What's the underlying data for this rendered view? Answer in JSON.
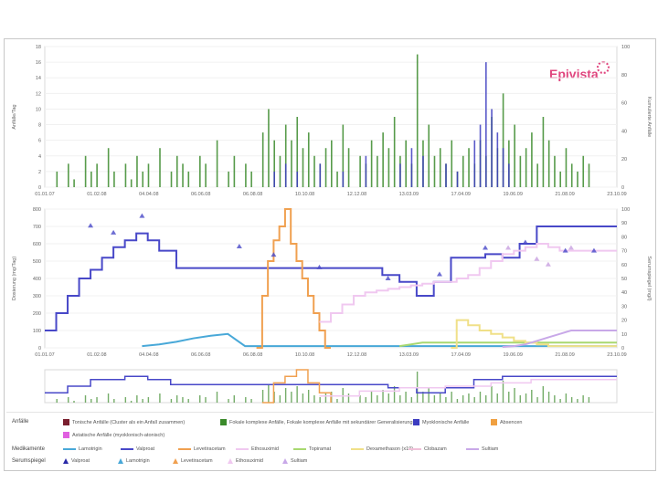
{
  "logo": {
    "text": "Epivista"
  },
  "colors": {
    "anfall_tonic": "#7a1f2e",
    "anfall_focal": "#3a8a2a",
    "anfall_myoclonic": "#3c3cc0",
    "absences": "#f0a040",
    "ahoyp": "#e060e0",
    "lamotrigin": "#48a8d8",
    "valproat": "#4848c8",
    "levetiracetam": "#f0a050",
    "ethosuximid": "#f0c8f0",
    "topiramat": "#a8d870",
    "dexamethason": "#f0e088",
    "clobazam": "#f0c0d8",
    "sultiam": "#c8a8e8"
  },
  "chart_data": [
    {
      "type": "bar",
      "id": "seizure-counts",
      "ylabel_left": "Anfälle/Tag",
      "ylabel_right": "Kumulierte Anfälle",
      "ylim_left": [
        0,
        18
      ],
      "ylim_right": [
        0,
        100
      ],
      "yticks_left": [
        "18",
        "16",
        "14",
        "12",
        "10",
        "8",
        "6",
        "4",
        "2",
        "0"
      ],
      "yticks_right": [
        "100",
        "80",
        "60",
        "40",
        "20",
        "0"
      ],
      "xticks": [
        "01.01.07",
        "01.02.08",
        "04.04.08",
        "06.06.08",
        "06.08.08",
        "10.10.08",
        "12.12.08",
        "13.03.09",
        "17.04.09",
        "19.06.09",
        "21.08.09",
        "23.10.09"
      ],
      "xrange": [
        0,
        100
      ],
      "series": [
        {
          "name": "focal",
          "color": "#3a8a2a",
          "x": [
            2,
            4,
            5,
            7,
            8,
            9,
            11,
            12,
            14,
            15,
            16,
            17,
            18,
            20,
            22,
            23,
            24,
            25,
            27,
            28,
            30,
            32,
            33,
            35,
            36,
            38,
            39,
            40,
            41,
            42,
            43,
            44,
            45,
            46,
            47,
            48,
            49,
            50,
            51,
            52,
            53,
            55,
            56,
            57,
            58,
            59,
            60,
            61,
            62,
            63,
            64,
            65,
            66,
            67,
            68,
            69,
            70,
            71,
            72,
            73,
            74,
            75,
            76,
            77,
            78,
            79,
            80,
            81,
            82,
            83,
            84,
            85,
            86,
            87,
            88,
            89,
            90,
            91,
            92,
            93,
            94,
            95
          ],
          "values": [
            2,
            3,
            1,
            4,
            2,
            3,
            5,
            2,
            3,
            1,
            4,
            2,
            3,
            5,
            2,
            4,
            3,
            2,
            4,
            3,
            6,
            2,
            4,
            3,
            2,
            7,
            10,
            6,
            4,
            8,
            6,
            9,
            5,
            7,
            4,
            3,
            5,
            6,
            2,
            8,
            5,
            4,
            3,
            6,
            4,
            7,
            5,
            9,
            4,
            6,
            3,
            17,
            6,
            8,
            4,
            5,
            3,
            6,
            2,
            4,
            5,
            3,
            6,
            4,
            9,
            5,
            12,
            6,
            8,
            4,
            5,
            7,
            3,
            9,
            6,
            4,
            2,
            5,
            3,
            2,
            4,
            3
          ]
        },
        {
          "name": "myoclonic",
          "color": "#3c3cc0",
          "x": [
            40,
            42,
            44,
            48,
            52,
            56,
            62,
            64,
            66,
            70,
            72,
            75,
            76,
            77,
            78,
            79,
            80,
            81
          ],
          "values": [
            2,
            3,
            2,
            3,
            2,
            4,
            3,
            5,
            4,
            3,
            2,
            6,
            8,
            16,
            10,
            7,
            5,
            3
          ]
        }
      ]
    },
    {
      "type": "line",
      "id": "medication-levels",
      "ylabel_left": "Dosierung (mg/Tag)",
      "ylabel_right": "Serumspiegel (mg/l)",
      "ylim_left": [
        0,
        800
      ],
      "ylim_right": [
        0,
        100
      ],
      "yticks_left": [
        "800",
        "700",
        "600",
        "500",
        "400",
        "300",
        "200",
        "100",
        "0"
      ],
      "yticks_right": [
        "100",
        "90",
        "80",
        "70",
        "60",
        "50",
        "40",
        "30",
        "20",
        "10",
        "0"
      ],
      "xticks": [
        "01.01.07",
        "01.02.08",
        "04.04.08",
        "06.06.08",
        "06.08.08",
        "10.10.08",
        "12.12.08",
        "13.03.09",
        "17.04.09",
        "19.06.09",
        "21.08.09",
        "23.10.09"
      ],
      "xrange": [
        0,
        100
      ],
      "series": [
        {
          "name": "Valproat",
          "color": "#4848c8",
          "step": true,
          "x": [
            0,
            2,
            4,
            6,
            8,
            10,
            12,
            14,
            16,
            18,
            20,
            23,
            26,
            29,
            32,
            35,
            38,
            41,
            44,
            47,
            50,
            53,
            56,
            59,
            62,
            65,
            68,
            71,
            74,
            77,
            80,
            83,
            86,
            89,
            92,
            95,
            98,
            100
          ],
          "y": [
            100,
            200,
            300,
            400,
            450,
            520,
            580,
            620,
            660,
            620,
            560,
            460,
            460,
            460,
            460,
            460,
            460,
            460,
            460,
            460,
            460,
            460,
            460,
            420,
            380,
            300,
            380,
            520,
            520,
            540,
            520,
            600,
            700,
            700,
            700,
            700,
            700,
            700
          ]
        },
        {
          "name": "Lamotrigin",
          "color": "#48a8d8",
          "x": [
            17,
            20,
            23,
            26,
            29,
            32,
            35,
            38,
            42,
            46,
            50,
            55,
            60,
            65,
            70,
            75,
            80,
            85,
            90,
            95,
            100
          ],
          "y": [
            10,
            20,
            35,
            55,
            70,
            80,
            10,
            10,
            10,
            10,
            10,
            10,
            10,
            10,
            10,
            10,
            10,
            10,
            10,
            10,
            10
          ]
        },
        {
          "name": "Levetiracetam",
          "color": "#f0a050",
          "step": true,
          "x": [
            37,
            38,
            39,
            40,
            41,
            42,
            43,
            44,
            45,
            46,
            47,
            48,
            49,
            50
          ],
          "y": [
            0,
            300,
            500,
            620,
            700,
            800,
            600,
            500,
            400,
            300,
            200,
            100,
            0,
            0
          ]
        },
        {
          "name": "Ethosuximid",
          "color": "#f0c8f0",
          "step": true,
          "x": [
            48,
            50,
            52,
            54,
            56,
            58,
            60,
            62,
            64,
            66,
            68,
            70,
            72,
            74,
            76,
            78,
            80,
            82,
            84,
            86,
            88,
            90,
            92,
            95,
            98,
            100
          ],
          "y": [
            150,
            200,
            250,
            300,
            320,
            330,
            340,
            350,
            360,
            370,
            380,
            380,
            400,
            420,
            460,
            500,
            540,
            560,
            580,
            600,
            580,
            560,
            560,
            560,
            560,
            560
          ]
        },
        {
          "name": "Topiramat",
          "color": "#a8d870",
          "x": [
            62,
            64,
            66,
            68,
            70,
            72,
            74,
            76,
            78,
            80,
            82,
            84,
            86,
            88,
            90,
            92,
            95,
            98,
            100
          ],
          "y": [
            10,
            20,
            30,
            30,
            30,
            30,
            30,
            30,
            30,
            30,
            30,
            30,
            30,
            30,
            30,
            30,
            30,
            30,
            30
          ]
        },
        {
          "name": "Dexamethason (x10)",
          "color": "#f0e088",
          "step": true,
          "x": [
            71,
            72,
            74,
            76,
            78,
            80,
            82,
            84,
            86,
            88,
            90,
            92,
            94,
            96,
            98,
            100
          ],
          "y": [
            0,
            160,
            130,
            100,
            80,
            60,
            40,
            30,
            20,
            10,
            10,
            10,
            10,
            10,
            10,
            10
          ]
        },
        {
          "name": "Sultiam",
          "color": "#c8a8e8",
          "x": [
            80,
            82,
            84,
            86,
            88,
            90,
            92,
            94,
            96,
            98,
            100
          ],
          "y": [
            5,
            10,
            20,
            40,
            60,
            80,
            100,
            100,
            100,
            100,
            100
          ]
        }
      ],
      "markers": [
        {
          "name": "Valproat level",
          "color": "#4848c8",
          "x": [
            8,
            12,
            17,
            34,
            40,
            48,
            60,
            69,
            77,
            84,
            91,
            96
          ],
          "y": [
            88,
            83,
            95,
            73,
            67,
            58,
            50,
            53,
            72,
            76,
            70,
            70
          ]
        },
        {
          "name": "Ethosuximid level",
          "color": "#c8a0e0",
          "x": [
            81,
            86,
            88,
            92
          ],
          "y": [
            72,
            64,
            60,
            72
          ]
        }
      ]
    },
    {
      "type": "line",
      "id": "overview-navigator",
      "xrange": [
        0,
        100
      ],
      "series": [
        {
          "name": "Valproat",
          "color": "#4848c8",
          "step": true,
          "x": [
            0,
            4,
            8,
            14,
            18,
            22,
            30,
            40,
            50,
            55,
            60,
            65,
            70,
            75,
            80,
            85,
            90,
            100
          ],
          "y": [
            30,
            50,
            70,
            80,
            70,
            55,
            55,
            55,
            55,
            55,
            45,
            30,
            45,
            70,
            80,
            80,
            80,
            80
          ]
        },
        {
          "name": "Levetiracetam",
          "color": "#f0a050",
          "step": true,
          "x": [
            38,
            40,
            42,
            44,
            46,
            48,
            50
          ],
          "y": [
            0,
            60,
            80,
            100,
            60,
            30,
            0
          ]
        },
        {
          "name": "Ethosuximid",
          "color": "#f0c8f0",
          "step": true,
          "x": [
            48,
            55,
            62,
            70,
            78,
            85,
            92,
            100
          ],
          "y": [
            20,
            35,
            45,
            50,
            60,
            70,
            70,
            70
          ]
        }
      ]
    }
  ],
  "legend": {
    "anfaelle_label": "Anfälle",
    "anfaelle_items": [
      "Tonische Anfälle (Cluster als ein Anfall zusammen)",
      "Fokale komplexe Anfälle, Fokale komplexe Anfälle mit sekundärer Generalisierung",
      "Myoklonische Anfälle",
      "Absencen"
    ],
    "anfaelle_item5": "Astatische Anfälle (myoklonisch-atonisch)",
    "medikamente_label": "Medikamente",
    "medikamente_items": [
      "Lamotrigin",
      "Valproat",
      "Levetiracetam",
      "Ethosuximid",
      "Topiramat",
      "Dexamethason (x10)",
      "Clobazam",
      "Sultiam"
    ],
    "serum_label": "Serumspiegel",
    "serum_items": [
      "Valproat",
      "Lamotrigin",
      "Levetiracetam",
      "Ethosuximid",
      "Sultiam"
    ]
  }
}
